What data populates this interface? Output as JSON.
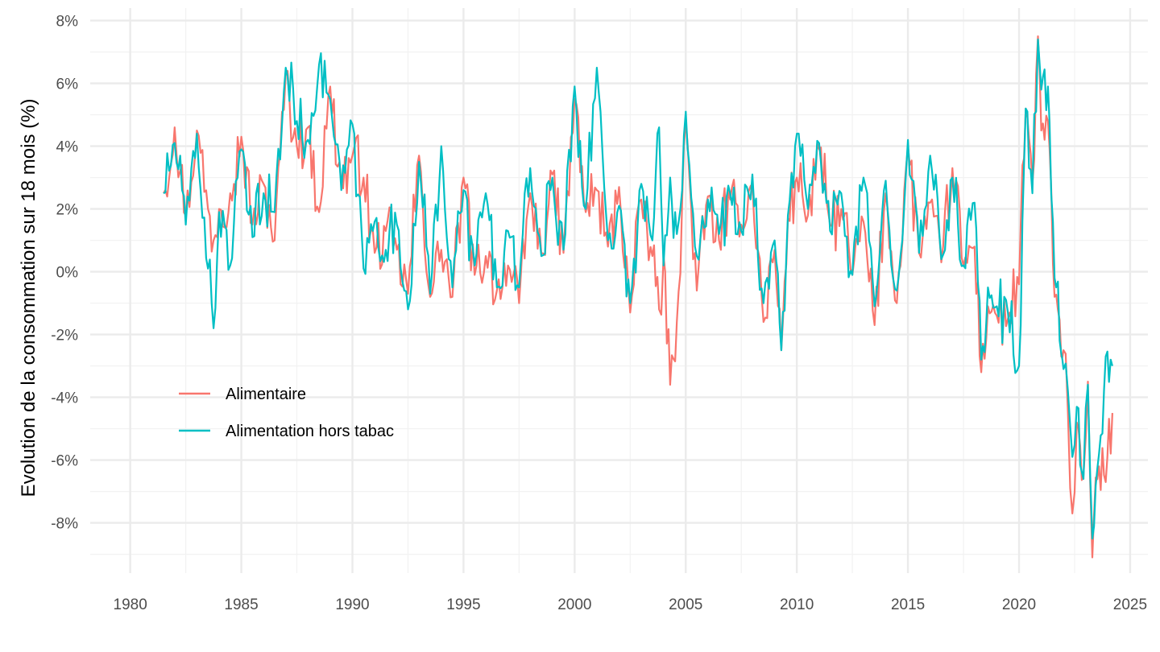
{
  "chart_data": {
    "type": "line",
    "title": "",
    "xlabel": "",
    "ylabel": "Evolution de la consommation sur 18 mois (%)",
    "xlim": [
      1978.2,
      2025.8
    ],
    "ylim": [
      -9.6,
      8.4
    ],
    "x_ticks": [
      1980,
      1985,
      1990,
      1995,
      2000,
      2005,
      2010,
      2015,
      2020,
      2025
    ],
    "x_tick_labels": [
      "1980",
      "1985",
      "1990",
      "1995",
      "2000",
      "2005",
      "2010",
      "2015",
      "2020",
      "2025"
    ],
    "y_ticks": [
      -8,
      -6,
      -4,
      -2,
      0,
      2,
      4,
      6,
      8
    ],
    "y_tick_labels": [
      "-8%",
      "-6%",
      "-4%",
      "-2%",
      "0%",
      "2%",
      "4%",
      "6%",
      "8%"
    ],
    "grid": true,
    "legend_position": "bottom-left-inside",
    "series": [
      {
        "name": "Alimentaire",
        "color": "#F8766D",
        "x": [
          1981.5,
          1982.0,
          1982.5,
          1983.0,
          1983.5,
          1983.75,
          1984.0,
          1984.5,
          1985.0,
          1985.5,
          1986.0,
          1986.5,
          1987.0,
          1987.5,
          1988.0,
          1988.5,
          1989.0,
          1989.5,
          1990.0,
          1990.5,
          1991.0,
          1991.5,
          1992.0,
          1992.5,
          1993.0,
          1993.5,
          1994.0,
          1994.5,
          1995.0,
          1995.5,
          1996.0,
          1996.5,
          1997.0,
          1997.5,
          1998.0,
          1998.5,
          1999.0,
          1999.5,
          2000.0,
          2000.5,
          2001.0,
          2001.5,
          2002.0,
          2002.5,
          2003.0,
          2003.5,
          2003.8,
          2004.0,
          2004.3,
          2004.6,
          2005.0,
          2005.5,
          2006.0,
          2006.5,
          2007.0,
          2007.5,
          2008.0,
          2008.5,
          2009.0,
          2009.3,
          2009.6,
          2010.0,
          2010.5,
          2011.0,
          2011.5,
          2012.0,
          2012.5,
          2013.0,
          2013.5,
          2014.0,
          2014.5,
          2015.0,
          2015.5,
          2016.0,
          2016.5,
          2017.0,
          2017.5,
          2018.0,
          2018.3,
          2018.6,
          2019.0,
          2019.5,
          2020.0,
          2020.3,
          2020.6,
          2020.85,
          2021.0,
          2021.3,
          2021.6,
          2021.9,
          2022.0,
          2022.2,
          2022.4,
          2022.6,
          2022.9,
          2023.1,
          2023.3,
          2023.6,
          2023.9,
          2024.2
        ],
        "values": [
          2.5,
          4.6,
          1.8,
          4.5,
          2.0,
          1.0,
          2.0,
          2.5,
          4.3,
          1.5,
          2.8,
          1.0,
          6.3,
          4.0,
          4.6,
          1.9,
          5.9,
          2.8,
          3.7,
          3.0,
          0.6,
          1.3,
          0.7,
          -0.7,
          3.7,
          -0.8,
          0.7,
          -0.8,
          3.0,
          -0.1,
          0.5,
          -0.6,
          0.2,
          -1.0,
          2.5,
          0.6,
          3.1,
          0.6,
          5.5,
          1.9,
          2.6,
          0.8,
          2.7,
          -1.3,
          2.3,
          0.5,
          -1.2,
          0.5,
          -3.6,
          -1.6,
          4.8,
          -0.6,
          2.4,
          1.0,
          2.3,
          1.5,
          2.8,
          -1.6,
          0.7,
          -2.5,
          1.7,
          3.0,
          1.8,
          3.9,
          1.5,
          2.0,
          -0.1,
          1.6,
          -1.7,
          2.5,
          -1.0,
          4.0,
          0.6,
          2.2,
          0.3,
          3.3,
          0.2,
          0.8,
          -3.2,
          -1.1,
          -1.4,
          -1.5,
          -0.4,
          5.2,
          2.8,
          7.5,
          4.5,
          4.8,
          -0.8,
          -2.7,
          -2.5,
          -4.5,
          -7.7,
          -4.8,
          -6.5,
          -3.5,
          -9.1,
          -6.2,
          -6.7,
          -4.5
        ]
      },
      {
        "name": "Alimentation hors tabac",
        "color": "#00BFC4",
        "x": [
          1981.5,
          1982.0,
          1982.5,
          1983.0,
          1983.5,
          1983.75,
          1984.0,
          1984.5,
          1985.0,
          1985.5,
          1986.0,
          1986.5,
          1987.0,
          1987.5,
          1988.0,
          1988.5,
          1989.0,
          1989.5,
          1990.0,
          1990.5,
          1991.0,
          1991.5,
          1992.0,
          1992.5,
          1993.0,
          1993.5,
          1994.0,
          1994.5,
          1995.0,
          1995.5,
          1996.0,
          1996.5,
          1997.0,
          1997.5,
          1998.0,
          1998.5,
          1999.0,
          1999.5,
          2000.0,
          2000.5,
          2001.0,
          2001.5,
          2002.0,
          2002.5,
          2003.0,
          2003.5,
          2003.8,
          2004.0,
          2004.3,
          2004.6,
          2005.0,
          2005.5,
          2006.0,
          2006.5,
          2007.0,
          2007.5,
          2008.0,
          2008.5,
          2009.0,
          2009.3,
          2009.6,
          2010.0,
          2010.5,
          2011.0,
          2011.5,
          2012.0,
          2012.5,
          2013.0,
          2013.5,
          2014.0,
          2014.5,
          2015.0,
          2015.5,
          2016.0,
          2016.5,
          2017.0,
          2017.5,
          2018.0,
          2018.3,
          2018.6,
          2019.0,
          2019.5,
          2020.0,
          2020.3,
          2020.6,
          2020.85,
          2021.0,
          2021.3,
          2021.6,
          2021.9,
          2022.0,
          2022.2,
          2022.4,
          2022.6,
          2022.9,
          2023.1,
          2023.3,
          2023.6,
          2023.9,
          2024.2
        ],
        "values": [
          2.5,
          4.1,
          1.5,
          4.4,
          0.1,
          -1.8,
          1.9,
          0.2,
          3.9,
          1.1,
          2.5,
          1.9,
          6.5,
          4.8,
          4.2,
          6.6,
          5.5,
          2.6,
          4.7,
          0.1,
          1.6,
          0.7,
          1.5,
          -1.2,
          3.5,
          -0.7,
          4.0,
          -0.5,
          2.6,
          0.2,
          2.5,
          -0.5,
          1.3,
          -0.5,
          3.3,
          0.5,
          3.0,
          0.7,
          5.9,
          2.0,
          6.5,
          1.0,
          2.1,
          -1.0,
          2.8,
          1.0,
          4.6,
          0.2,
          3.0,
          1.2,
          5.1,
          0.5,
          2.3,
          1.2,
          2.5,
          1.3,
          3.1,
          -1.0,
          1.0,
          -2.5,
          1.8,
          4.4,
          2.0,
          4.1,
          1.3,
          2.5,
          -0.1,
          3.0,
          -1.1,
          2.9,
          -0.6,
          4.2,
          0.6,
          3.7,
          0.4,
          3.0,
          0.2,
          2.2,
          -2.8,
          -0.5,
          -1.1,
          -1.3,
          -3.0,
          5.2,
          2.5,
          7.4,
          5.8,
          5.9,
          -0.2,
          -2.6,
          -3.1,
          -3.8,
          -5.9,
          -4.3,
          -6.6,
          -3.6,
          -8.5,
          -5.8,
          -2.7,
          -3.0
        ]
      }
    ]
  }
}
